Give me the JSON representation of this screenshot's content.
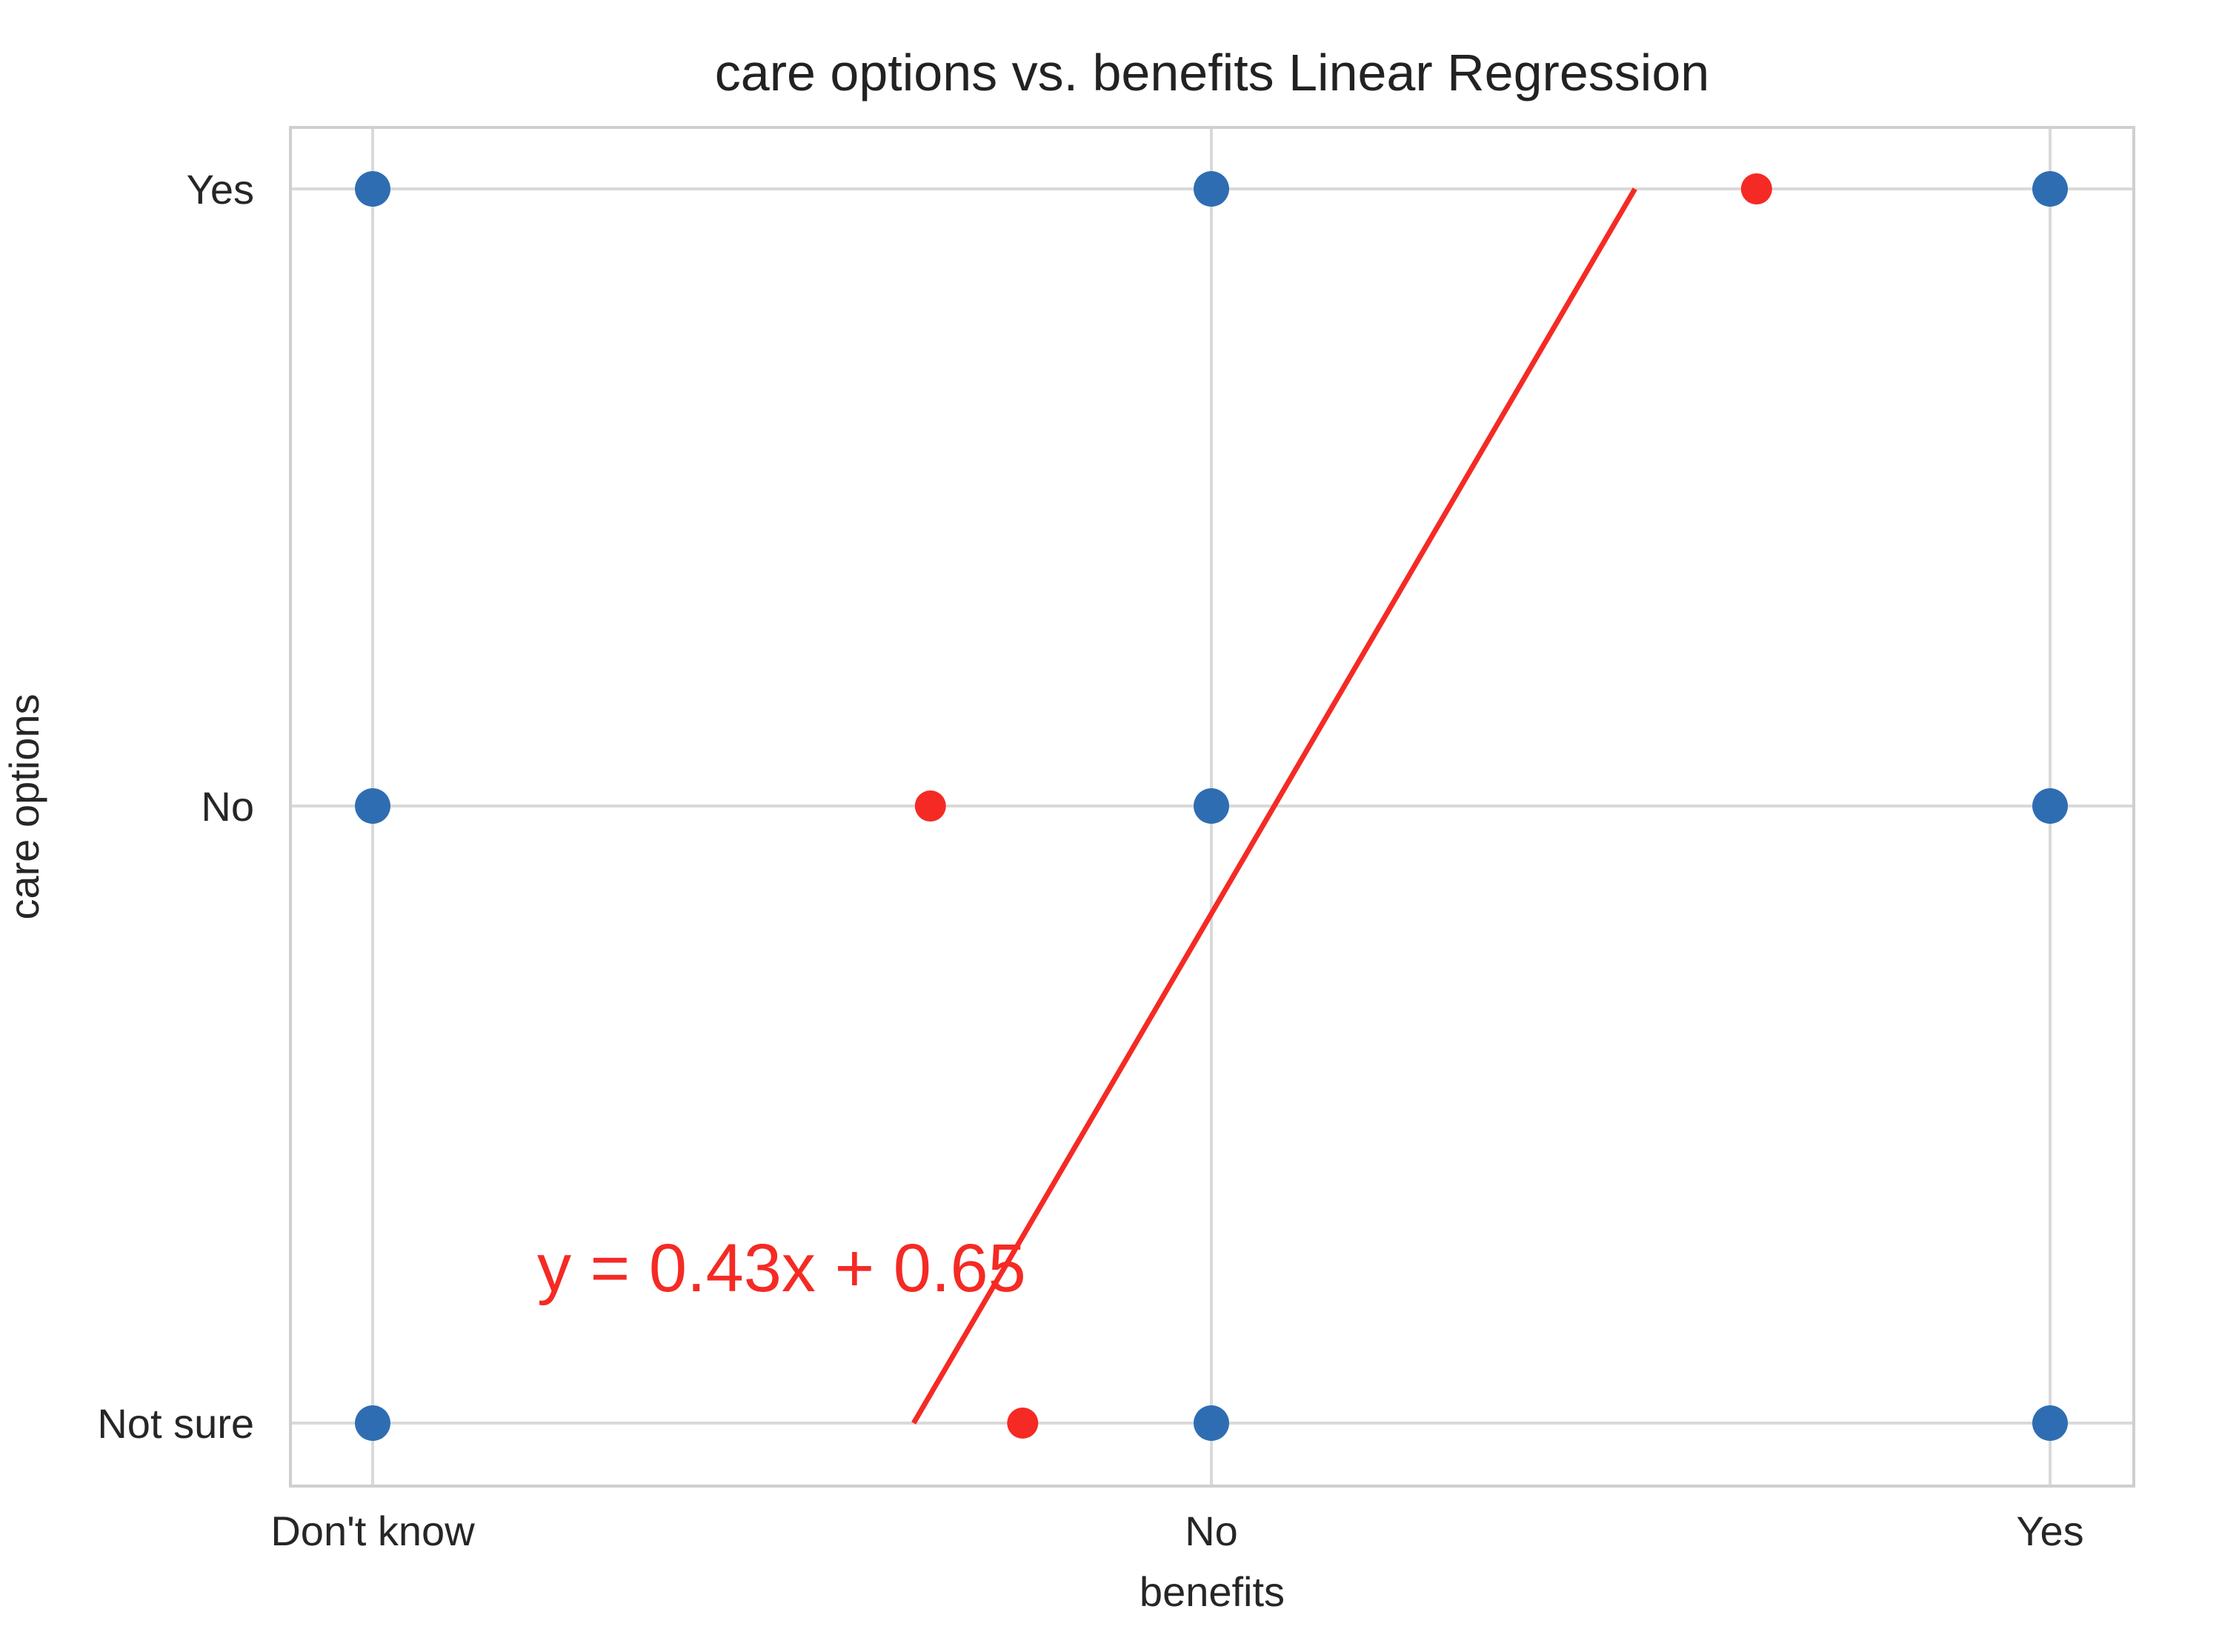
{
  "chart_data": {
    "type": "scatter",
    "title": "care options vs. benefits Linear Regression",
    "xlabel": "benefits",
    "ylabel": "care options",
    "x_categories": [
      "Don't know",
      "No",
      "Yes"
    ],
    "y_categories": [
      "Not sure",
      "No",
      "Yes"
    ],
    "xlim": [
      -0.1,
      2.1
    ],
    "ylim": [
      -0.1,
      2.1
    ],
    "grid": true,
    "series": [
      {
        "color": "#2f6db3",
        "points": [
          {
            "x": "Don't know",
            "y": "Yes"
          },
          {
            "x": "No",
            "y": "Yes"
          },
          {
            "x": "Yes",
            "y": "Yes"
          },
          {
            "x": "Don't know",
            "y": "No"
          },
          {
            "x": "No",
            "y": "No"
          },
          {
            "x": "Yes",
            "y": "No"
          },
          {
            "x": "Don't know",
            "y": "Not sure"
          },
          {
            "x": "No",
            "y": "Not sure"
          },
          {
            "x": "Yes",
            "y": "Not sure"
          }
        ]
      },
      {
        "color": "#f52a24",
        "points": [
          {
            "x": 1.65,
            "y": 2.0
          },
          {
            "x": 0.665,
            "y": 1.0
          },
          {
            "x": 0.775,
            "y": 0.0
          }
        ]
      }
    ],
    "regression_line": {
      "color": "#f52a24",
      "from": {
        "x": 0.645,
        "y": 0.0
      },
      "to": {
        "x": 1.505,
        "y": 2.0
      }
    },
    "annotation": {
      "text": "y = 0.43x + 0.65",
      "x": 0.2,
      "y": 0.24,
      "color": "#f52a24"
    }
  }
}
